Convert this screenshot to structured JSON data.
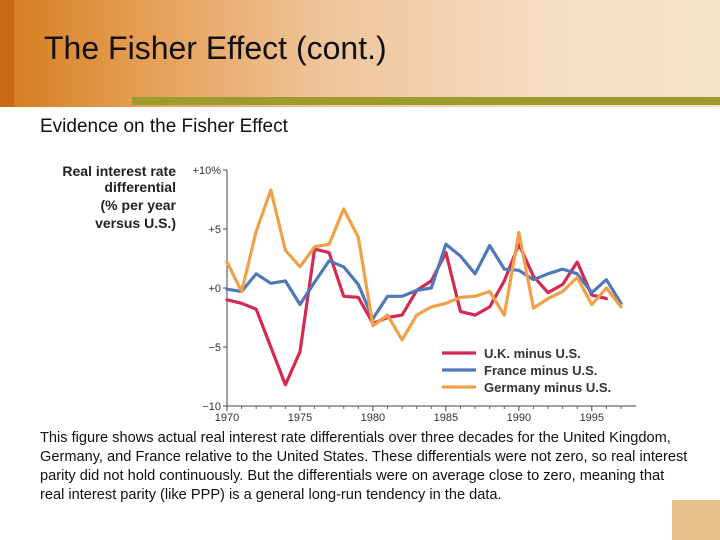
{
  "slide": {
    "title": "The Fisher Effect (cont.)",
    "subtitle": "Evidence on the Fisher Effect",
    "caption": "This figure shows actual real interest rate differentials over three decades for the United Kingdom, Germany, and France relative to the United States. These differentials were not zero, so real interest parity did not hold continuously. But the differentials were on average close to zero, meaning that real interest parity (like PPP) is a general long-run tendency in the data.",
    "colors": {
      "header_accent": "#d27c1c",
      "rule": "#9c9c2e"
    }
  },
  "chart_data": {
    "type": "line",
    "ylabel_lines": [
      "Real interest rate",
      "differential",
      "(% per year",
      "versus U.S.)"
    ],
    "xlim": [
      1970,
      1997
    ],
    "ylim": [
      -10,
      10
    ],
    "x_ticks": [
      1970,
      1975,
      1980,
      1985,
      1990,
      1995
    ],
    "y_ticks": [
      10,
      5,
      0,
      -5,
      -10
    ],
    "y_tick_labels": [
      "+10%",
      "+5",
      "+0",
      "−5",
      "−10"
    ],
    "legend_position": "bottom-right",
    "series": [
      {
        "name": "U.K. minus U.S.",
        "color": "#d42a52",
        "points": [
          [
            1970,
            -1
          ],
          [
            1971,
            -1.3
          ],
          [
            1972,
            -1.8
          ],
          [
            1973,
            -5
          ],
          [
            1974,
            -8.2
          ],
          [
            1975,
            -5.4
          ],
          [
            1976,
            3.3
          ],
          [
            1977,
            3
          ],
          [
            1978,
            -0.7
          ],
          [
            1979,
            -0.8
          ],
          [
            1980,
            -3
          ],
          [
            1981,
            -2.5
          ],
          [
            1982,
            -2.3
          ],
          [
            1983,
            -0.2
          ],
          [
            1984,
            0.6
          ],
          [
            1985,
            3
          ],
          [
            1986,
            -2
          ],
          [
            1987,
            -2.3
          ],
          [
            1988,
            -1.6
          ],
          [
            1989,
            0.6
          ],
          [
            1990,
            3.7
          ],
          [
            1991,
            1
          ],
          [
            1992,
            -0.4
          ],
          [
            1993,
            0.3
          ],
          [
            1994,
            2.2
          ],
          [
            1995,
            -0.6
          ],
          [
            1996,
            -0.9
          ]
        ]
      },
      {
        "name": "France minus U.S.",
        "color": "#4f78b8",
        "points": [
          [
            1970,
            -0.1
          ],
          [
            1971,
            -0.3
          ],
          [
            1972,
            1.2
          ],
          [
            1973,
            0.4
          ],
          [
            1974,
            0.6
          ],
          [
            1975,
            -1.4
          ],
          [
            1976,
            0.5
          ],
          [
            1977,
            2.3
          ],
          [
            1978,
            1.8
          ],
          [
            1979,
            0.3
          ],
          [
            1980,
            -2.6
          ],
          [
            1981,
            -0.7
          ],
          [
            1982,
            -0.7
          ],
          [
            1983,
            -0.2
          ],
          [
            1984,
            0
          ],
          [
            1985,
            3.7
          ],
          [
            1986,
            2.7
          ],
          [
            1987,
            1.2
          ],
          [
            1988,
            3.6
          ],
          [
            1989,
            1.6
          ],
          [
            1990,
            1.5
          ],
          [
            1991,
            0.7
          ],
          [
            1992,
            1.2
          ],
          [
            1993,
            1.6
          ],
          [
            1994,
            1.2
          ],
          [
            1995,
            -0.4
          ],
          [
            1996,
            0.7
          ],
          [
            1997,
            -1.3
          ]
        ]
      },
      {
        "name": "Germany minus U.S.",
        "color": "#f0a048",
        "points": [
          [
            1970,
            2.2
          ],
          [
            1971,
            -0.3
          ],
          [
            1972,
            4.8
          ],
          [
            1973,
            8.3
          ],
          [
            1974,
            3.2
          ],
          [
            1975,
            1.8
          ],
          [
            1976,
            3.5
          ],
          [
            1977,
            3.7
          ],
          [
            1978,
            6.7
          ],
          [
            1979,
            4.3
          ],
          [
            1980,
            -3.2
          ],
          [
            1981,
            -2.3
          ],
          [
            1982,
            -4.4
          ],
          [
            1983,
            -2.3
          ],
          [
            1984,
            -1.6
          ],
          [
            1985,
            -1.3
          ],
          [
            1986,
            -0.8
          ],
          [
            1987,
            -0.7
          ],
          [
            1988,
            -0.3
          ],
          [
            1989,
            -2.3
          ],
          [
            1990,
            4.7
          ],
          [
            1991,
            -1.7
          ],
          [
            1992,
            -0.9
          ],
          [
            1993,
            -0.3
          ],
          [
            1994,
            0.9
          ],
          [
            1995,
            -1.4
          ],
          [
            1996,
            0
          ],
          [
            1997,
            -1.6
          ]
        ]
      }
    ]
  }
}
